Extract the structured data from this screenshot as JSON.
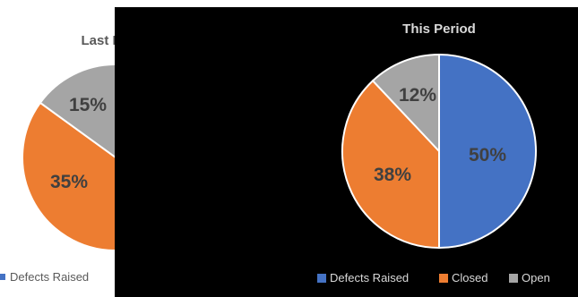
{
  "chart_data": [
    {
      "type": "pie",
      "title": "Last Period",
      "title_visible": "Last P",
      "categories": [
        "Defects Raised",
        "Closed",
        "Open"
      ],
      "values": [
        50,
        35,
        15
      ],
      "labels": [
        "",
        "35%",
        "15%"
      ],
      "legend": [
        "Defects Raised"
      ],
      "legend_position": "bottom",
      "background": "#ffffff",
      "text_color": "#595959"
    },
    {
      "type": "pie",
      "title": "This Period",
      "categories": [
        "Defects Raised",
        "Closed",
        "Open"
      ],
      "values": [
        50,
        38,
        12
      ],
      "labels": [
        "50%",
        "38%",
        "12%"
      ],
      "legend": [
        "Defects Raised",
        "Closed",
        "Open"
      ],
      "legend_position": "bottom",
      "background": "#000000",
      "text_color": "#d9d9d9"
    }
  ],
  "colors": {
    "Defects Raised": "#4472c4",
    "Closed": "#ed7d31",
    "Open": "#a5a5a5",
    "label_dark": "#404040"
  }
}
